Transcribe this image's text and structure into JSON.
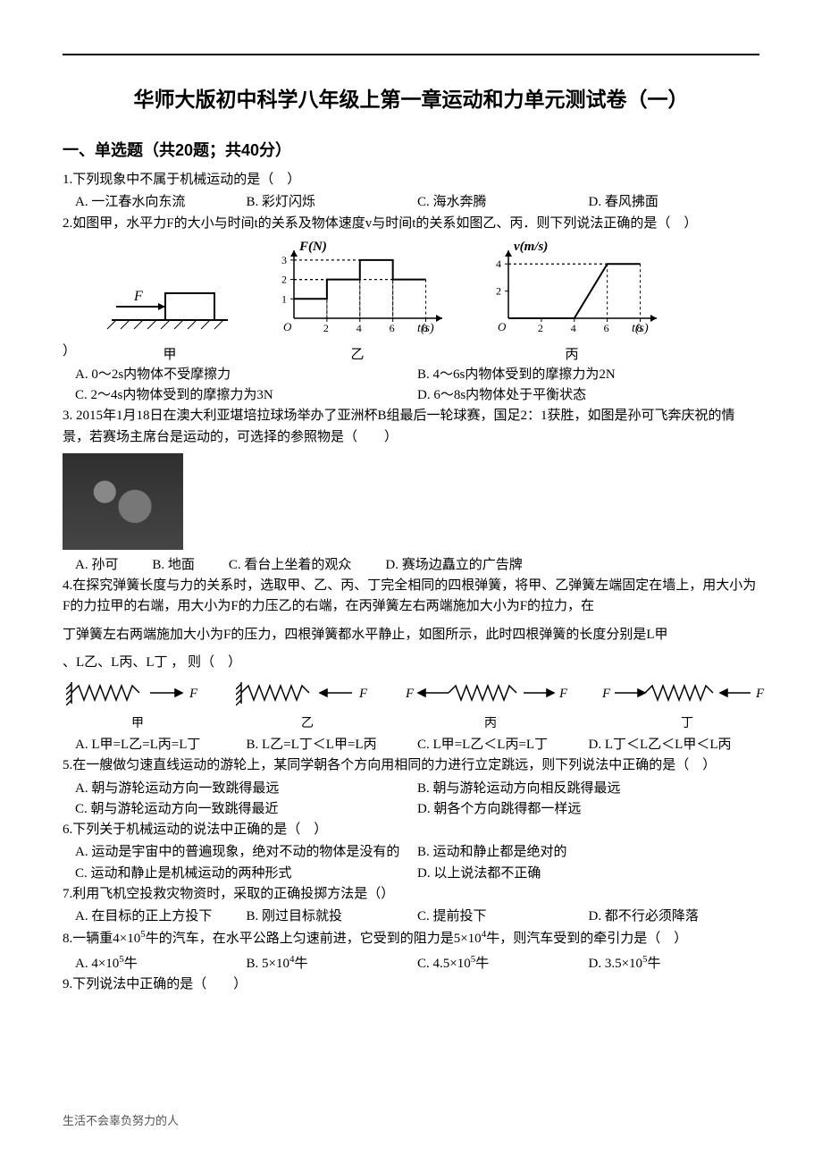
{
  "title": "华师大版初中科学八年级上第一章运动和力单元测试卷（一）",
  "section1_heading": "一、单选题（共20题；共40分）",
  "q1": {
    "stem": "1.下列现象中不属于机械运动的是（　）",
    "A": "A. 一江春水向东流",
    "B": "B. 彩灯闪烁",
    "C": "C. 海水奔腾",
    "D": "D. 春风拂面"
  },
  "q2": {
    "stem": "2.如图甲，水平力F的大小与时间t的关系及物体速度v与时间t的关系如图乙、丙．则下列说法正确的是（　）",
    "A": "A. 0～2s内物体不受摩擦力",
    "B": "B. 4～6s内物体受到的摩擦力为2N",
    "C": "C. 2～4s内物体受到的摩擦力为3N",
    "D": "D. 6～8s内物体处于平衡状态",
    "chart_jia": {
      "label": "甲",
      "arrow_label": "F"
    },
    "chart_yi": {
      "label": "乙",
      "ylabel": "F(N)",
      "xlabel": "t(s)",
      "xticks": [
        2,
        4,
        6,
        8
      ],
      "yticks": [
        1,
        2,
        3
      ],
      "step_points": [
        [
          0,
          1
        ],
        [
          2,
          1
        ],
        [
          2,
          2
        ],
        [
          4,
          2
        ],
        [
          4,
          3
        ],
        [
          6,
          3
        ],
        [
          6,
          2
        ],
        [
          8,
          2
        ]
      ],
      "stroke": "#000000",
      "grid_dash": "3,3",
      "xlim": [
        0,
        9
      ],
      "ylim": [
        0,
        3.5
      ]
    },
    "chart_bing": {
      "label": "丙",
      "ylabel": "v(m/s)",
      "xlabel": "t(s)",
      "xticks": [
        2,
        4,
        6,
        8
      ],
      "yticks": [
        2,
        4
      ],
      "line_points": [
        [
          0,
          0
        ],
        [
          4,
          0
        ],
        [
          6,
          4
        ],
        [
          8,
          4
        ]
      ],
      "stroke": "#000000",
      "grid_dash": "3,3",
      "xlim": [
        0,
        9
      ],
      "ylim": [
        0,
        5
      ]
    }
  },
  "q3": {
    "stem": "3. 2015年1月18日在澳大利亚堪培拉球场举办了亚洲杯B组最后一轮球赛，国足2：1获胜，如图是孙可飞奔庆祝的情景，若赛场主席台是运动的，可选择的参照物是（　　）",
    "A": "A. 孙可",
    "B": "B. 地面",
    "C": "C. 看台上坐着的观众",
    "D": "D. 赛场边矗立的广告牌"
  },
  "q4": {
    "stem_a": "4.在探究弹簧长度与力的关系时，选取甲、乙、丙、丁完全相同的四根弹簧，将甲、乙弹簧左端固定在墙上，用大小为F的力拉甲的右端，用大小为F的力压乙的右端，在丙弹簧左右两端施加大小为F的拉力，在",
    "stem_b": "丁弹簧左右两端施加大小为F的压力，四根弹簧都水平静止，如图所示，此时四根弹簧的长度分别是L甲",
    "stem_c": "、L乙、L丙、L丁 ，  则（　）",
    "A": "A. L甲=L乙=L丙=L丁",
    "B": "B. L乙=L丁＜L甲=L丙",
    "C": "C. L甲=L乙＜L丙=L丁",
    "D": "D. L丁＜L乙＜L甲＜L丙",
    "spring_labels": [
      "甲",
      "乙",
      "丙",
      "丁"
    ]
  },
  "q5": {
    "stem": "5.在一艘做匀速直线运动的游轮上，某同学朝各个方向用相同的力进行立定跳远，则下列说法中正确的是（　）",
    "A": "A. 朝与游轮运动方向一致跳得最远",
    "B": "B. 朝与游轮运动方向相反跳得最远",
    "C": "C. 朝与游轮运动方向一致跳得最近",
    "D": "D. 朝各个方向跳得都一样远"
  },
  "q6": {
    "stem": "6.下列关于机械运动的说法中正确的是（　）",
    "A": "A. 运动是宇宙中的普遍现象，绝对不动的物体是没有的",
    "B": "B. 运动和静止都是绝对的",
    "C": "C. 运动和静止是机械运动的两种形式",
    "D": "D. 以上说法都不正确"
  },
  "q7": {
    "stem": "7.利用飞机空投救灾物资时，采取的正确投掷方法是（）",
    "A": "A. 在目标的正上方投下",
    "B": "B. 刚过目标就投",
    "C": "C. 提前投下",
    "D": "D. 都不行必须降落"
  },
  "q8": {
    "stem_a": "8.一辆重4×10",
    "sup1": "5",
    "stem_b": "牛的汽车，在水平公路上匀速前进，它受到的阻力是5×10",
    "sup2": "4",
    "stem_c": "牛，则汽车受到的牵引力是（　）",
    "A_pre": "A. 4×10",
    "A_sup": "5",
    "A_post": "牛",
    "B_pre": "B. 5×10",
    "B_sup": "4",
    "B_post": "牛",
    "C_pre": "C. 4.5×10",
    "C_sup": "5",
    "C_post": "牛",
    "D_pre": "D. 3.5×10",
    "D_sup": "5",
    "D_post": "牛"
  },
  "q9": {
    "stem": "9.下列说法中正确的是（　　）"
  },
  "footer": "生活不会辜负努力的人"
}
